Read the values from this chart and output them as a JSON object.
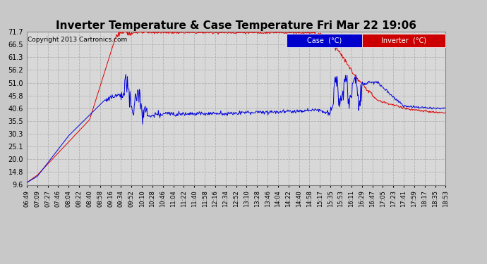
{
  "title": "Inverter Temperature & Case Temperature Fri Mar 22 19:06",
  "copyright": "Copyright 2013 Cartronics.com",
  "yticks": [
    9.6,
    14.8,
    20.0,
    25.1,
    30.3,
    35.5,
    40.6,
    45.8,
    51.0,
    56.2,
    61.3,
    66.5,
    71.7
  ],
  "xtick_labels_clean": [
    "06:49",
    "07:09",
    "07:27",
    "07:46",
    "08:04",
    "08:22",
    "08:40",
    "08:58",
    "09:16",
    "09:34",
    "09:52",
    "10:10",
    "10:28",
    "10:46",
    "11:04",
    "11:22",
    "11:40",
    "11:58",
    "12:16",
    "12:34",
    "12:52",
    "13:10",
    "13:28",
    "13:46",
    "14:04",
    "14:22",
    "14:40",
    "14:58",
    "15:17",
    "15:35",
    "15:53",
    "16:11",
    "16:29",
    "16:47",
    "17:05",
    "17:23",
    "17:41",
    "17:59",
    "18:17",
    "18:35",
    "18:53"
  ],
  "background_color": "#c8c8c8",
  "plot_bg_color": "#d8d8d8",
  "grid_color": "#b0b0b0",
  "red_color": "#dd0000",
  "blue_color": "#0000dd",
  "title_fontsize": 11,
  "legend_case_bg": "#0000cc",
  "legend_inv_bg": "#cc0000",
  "ymin": 9.6,
  "ymax": 71.7
}
